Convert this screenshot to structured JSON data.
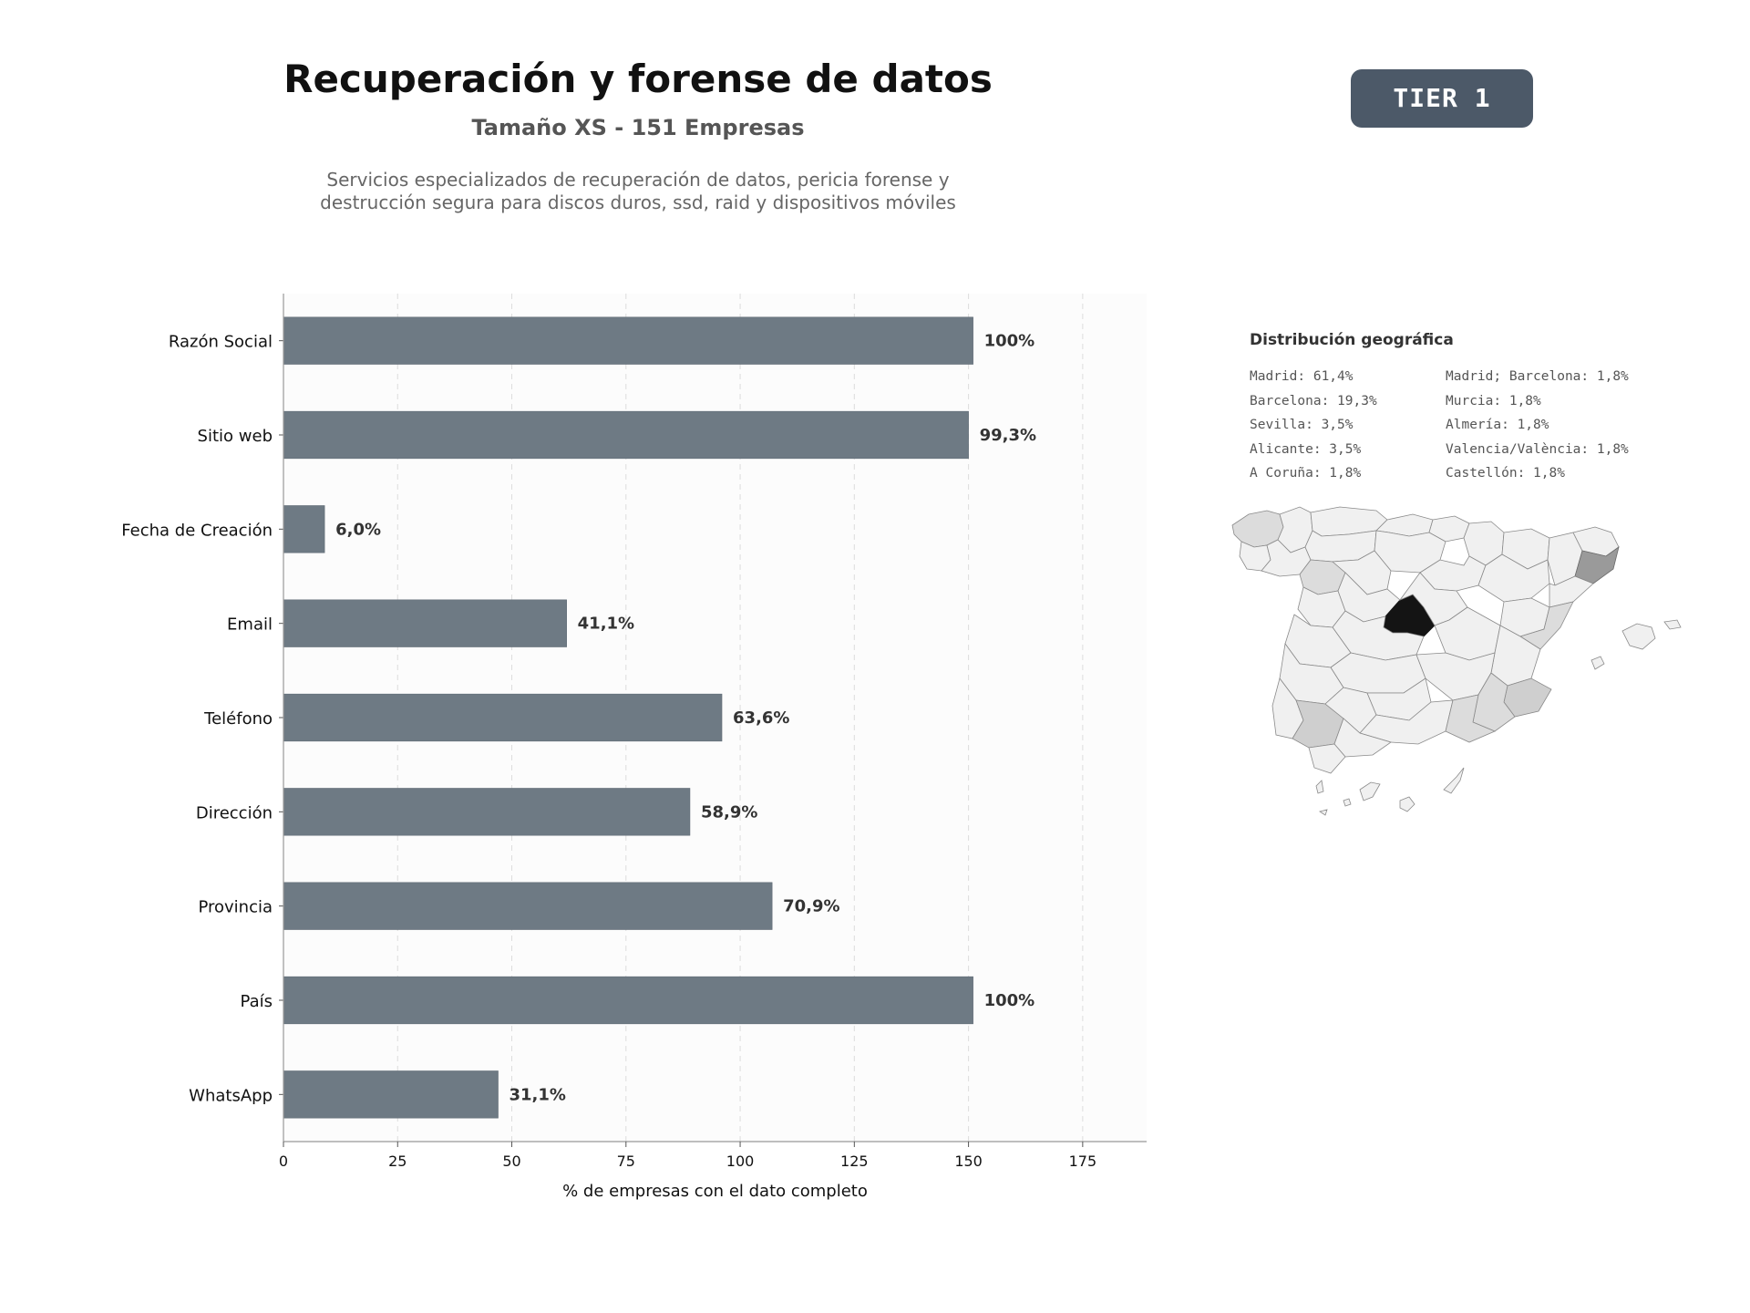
{
  "header": {
    "title": "Recuperación y forense de datos",
    "subtitle": "Tamaño XS - 151 Empresas",
    "description_line1": "Servicios especializados de recuperación de datos, pericia forense y",
    "description_line2": "destrucción segura para discos duros, ssd, raid y dispositivos móviles",
    "tier_label": "TIER 1"
  },
  "chart_data": {
    "type": "bar",
    "orientation": "horizontal",
    "categories": [
      "Razón Social",
      "Sitio web",
      "Fecha de Creación",
      "Email",
      "Teléfono",
      "Dirección",
      "Provincia",
      "País",
      "WhatsApp"
    ],
    "values": [
      151,
      150,
      9,
      62,
      96,
      89,
      107,
      151,
      47
    ],
    "data_labels": [
      "100%",
      "99,3%",
      "6,0%",
      "41,1%",
      "63,6%",
      "58,9%",
      "70,9%",
      "100%",
      "31,1%"
    ],
    "xlabel": "% de empresas con el dato completo",
    "ylabel": "",
    "xlim": [
      0,
      189
    ],
    "xticks": [
      0,
      25,
      50,
      75,
      100,
      125,
      150,
      175
    ],
    "grid": "vertical dashed",
    "bar_color": "#6e7a84"
  },
  "geo": {
    "title": "Distribución geográfica",
    "col1": [
      "Madrid: 61,4%",
      "Barcelona: 19,3%",
      "Sevilla: 3,5%",
      "Alicante: 3,5%",
      "A Coruña: 1,8%"
    ],
    "col2": [
      "Madrid; Barcelona: 1,8%",
      "Murcia: 1,8%",
      "Almería: 1,8%",
      "Valencia/València: 1,8%",
      "Castellón: 1,8%"
    ],
    "colors": {
      "max": "#141414",
      "high": "#9a9a9a",
      "mid": "#cfcfcf",
      "low": "#dcdcdc",
      "base": "#f0f0f0",
      "stroke": "#8a8a8a"
    }
  }
}
